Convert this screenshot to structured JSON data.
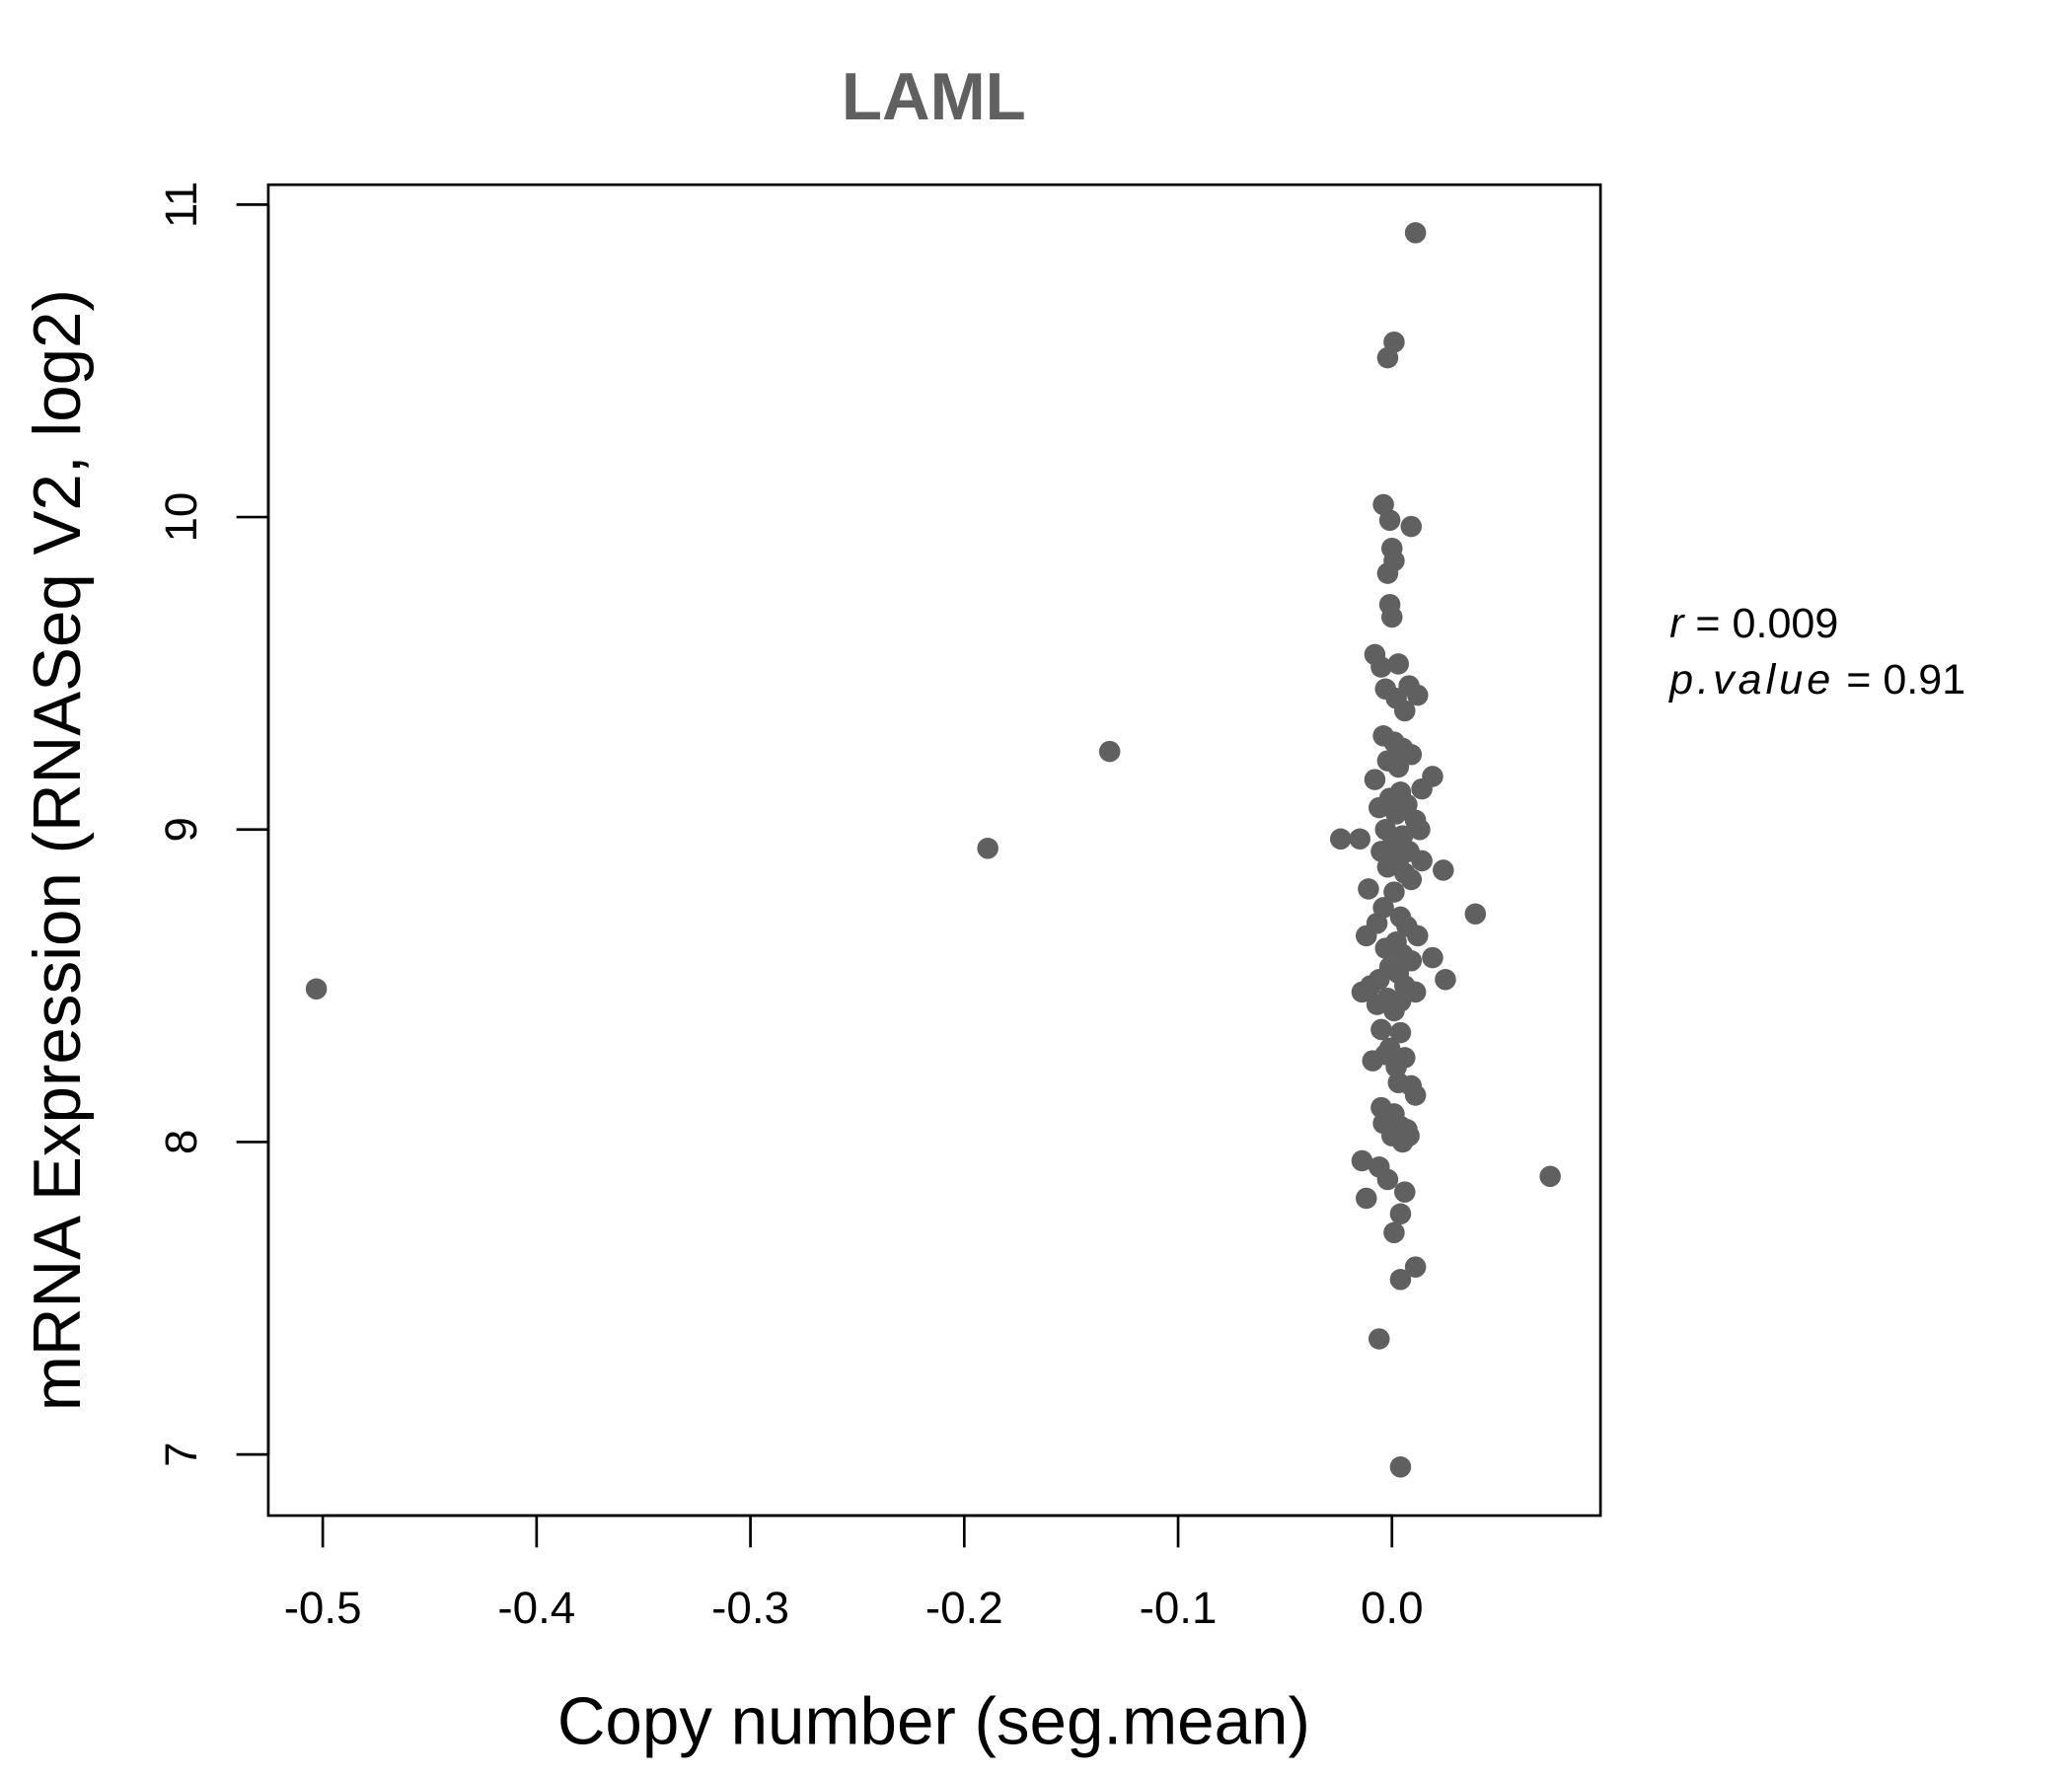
{
  "chart_data": {
    "type": "scatter",
    "title": "LAML",
    "xlabel": "Copy number (seg.mean)",
    "ylabel": "mRNA Expression (RNASeq V2, log2)",
    "xlim": [
      -0.525,
      0.098
    ],
    "ylim": [
      6.81,
      11.06
    ],
    "xticks": [
      -0.5,
      -0.4,
      -0.3,
      -0.2,
      -0.1,
      0.0
    ],
    "xtick_labels": [
      "-0.5",
      "-0.4",
      "-0.3",
      "-0.2",
      "-0.1",
      "0.0"
    ],
    "yticks": [
      7,
      8,
      9,
      10,
      11
    ],
    "ytick_labels": [
      "7",
      "8",
      "9",
      "10",
      "11"
    ],
    "grid": false,
    "point_color": "#606060",
    "annotation": {
      "r_label": "r",
      "r_value": "0.009",
      "p_label": "p.value",
      "p_value": "0.91",
      "eq": "="
    },
    "points": [
      [
        -0.503,
        8.49
      ],
      [
        -0.189,
        8.94
      ],
      [
        -0.132,
        9.25
      ],
      [
        0.074,
        7.89
      ],
      [
        0.011,
        10.91
      ],
      [
        0.001,
        10.56
      ],
      [
        -0.002,
        10.51
      ],
      [
        -0.004,
        10.04
      ],
      [
        0.009,
        9.97
      ],
      [
        -0.001,
        9.99
      ],
      [
        0.0,
        9.9
      ],
      [
        0.001,
        9.86
      ],
      [
        -0.002,
        9.82
      ],
      [
        -0.001,
        9.72
      ],
      [
        0.0,
        9.68
      ],
      [
        -0.008,
        9.56
      ],
      [
        -0.005,
        9.52
      ],
      [
        0.003,
        9.53
      ],
      [
        0.019,
        9.17
      ],
      [
        -0.024,
        8.97
      ],
      [
        -0.015,
        8.97
      ],
      [
        0.024,
        8.87
      ],
      [
        0.039,
        8.73
      ],
      [
        0.019,
        8.59
      ],
      [
        0.025,
        8.52
      ],
      [
        -0.014,
        7.94
      ],
      [
        -0.012,
        7.82
      ],
      [
        0.006,
        7.84
      ],
      [
        0.004,
        7.77
      ],
      [
        0.001,
        7.71
      ],
      [
        0.011,
        7.6
      ],
      [
        0.004,
        7.56
      ],
      [
        -0.006,
        7.37
      ],
      [
        0.004,
        6.96
      ],
      [
        -0.003,
        9.45
      ],
      [
        0.002,
        9.42
      ],
      [
        0.008,
        9.46
      ],
      [
        0.012,
        9.43
      ],
      [
        0.006,
        9.38
      ],
      [
        -0.004,
        9.3
      ],
      [
        0.001,
        9.28
      ],
      [
        0.005,
        9.26
      ],
      [
        0.009,
        9.24
      ],
      [
        -0.002,
        9.22
      ],
      [
        0.003,
        9.2
      ],
      [
        -0.008,
        9.16
      ],
      [
        0.014,
        9.13
      ],
      [
        0.004,
        9.12
      ],
      [
        -0.001,
        9.1
      ],
      [
        0.007,
        9.08
      ],
      [
        -0.006,
        9.07
      ],
      [
        0.002,
        9.05
      ],
      [
        0.011,
        9.03
      ],
      [
        0.013,
        9.0
      ],
      [
        -0.003,
        9.0
      ],
      [
        0.005,
        8.98
      ],
      [
        0.0,
        8.95
      ],
      [
        -0.005,
        8.93
      ],
      [
        0.008,
        8.93
      ],
      [
        0.003,
        8.9
      ],
      [
        0.014,
        8.9
      ],
      [
        -0.002,
        8.88
      ],
      [
        0.006,
        8.86
      ],
      [
        0.009,
        8.84
      ],
      [
        -0.011,
        8.81
      ],
      [
        0.001,
        8.8
      ],
      [
        -0.004,
        8.75
      ],
      [
        0.004,
        8.72
      ],
      [
        -0.007,
        8.7
      ],
      [
        0.007,
        8.69
      ],
      [
        0.012,
        8.66
      ],
      [
        -0.012,
        8.66
      ],
      [
        0.002,
        8.64
      ],
      [
        -0.003,
        8.62
      ],
      [
        0.005,
        8.6
      ],
      [
        0.009,
        8.58
      ],
      [
        -0.001,
        8.56
      ],
      [
        0.003,
        8.54
      ],
      [
        -0.006,
        8.52
      ],
      [
        -0.01,
        8.5
      ],
      [
        0.006,
        8.5
      ],
      [
        -0.014,
        8.48
      ],
      [
        0.011,
        8.48
      ],
      [
        -0.002,
        8.46
      ],
      [
        0.004,
        8.45
      ],
      [
        -0.007,
        8.44
      ],
      [
        0.001,
        8.42
      ],
      [
        -0.005,
        8.36
      ],
      [
        0.004,
        8.35
      ],
      [
        -0.001,
        8.3
      ],
      [
        -0.003,
        8.28
      ],
      [
        0.006,
        8.27
      ],
      [
        -0.009,
        8.26
      ],
      [
        0.002,
        8.24
      ],
      [
        0.003,
        8.19
      ],
      [
        0.009,
        8.18
      ],
      [
        0.011,
        8.15
      ],
      [
        -0.005,
        8.11
      ],
      [
        0.001,
        8.09
      ],
      [
        -0.004,
        8.06
      ],
      [
        0.004,
        8.05
      ],
      [
        0.007,
        8.04
      ],
      [
        0.0,
        8.02
      ],
      [
        0.005,
        8.0
      ],
      [
        0.008,
        8.02
      ],
      [
        -0.006,
        7.92
      ],
      [
        -0.002,
        7.88
      ]
    ]
  }
}
